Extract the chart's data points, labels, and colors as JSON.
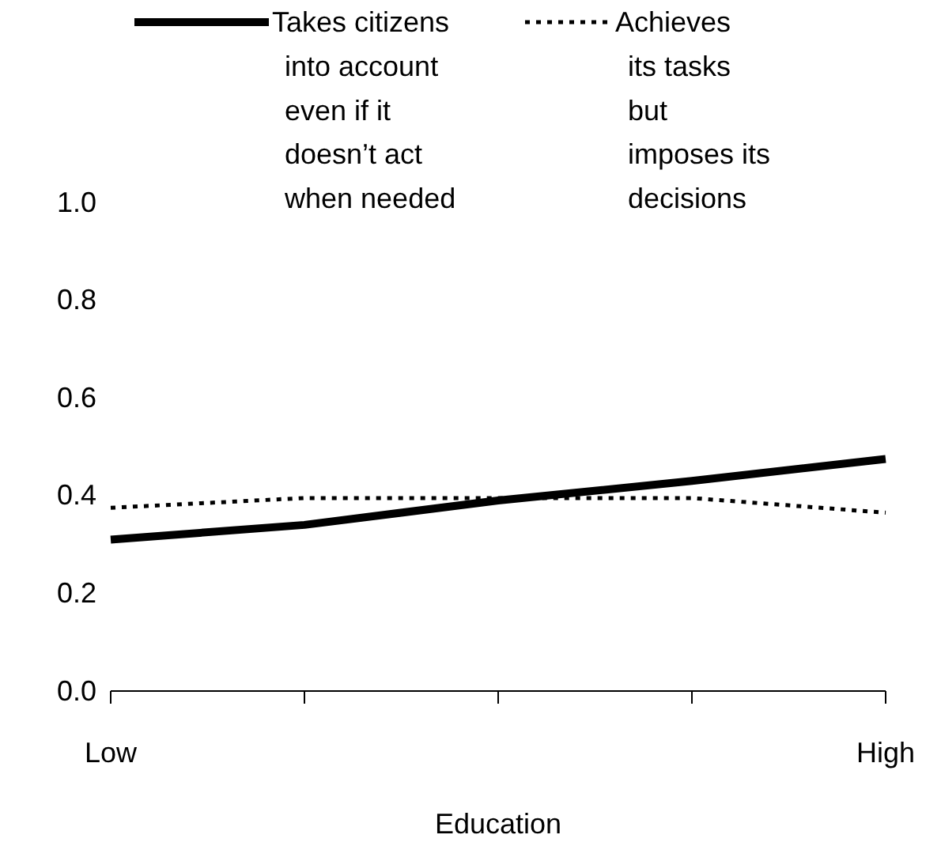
{
  "chart_data": {
    "type": "line",
    "xlabel": "Education",
    "categories": [
      "Low",
      null,
      null,
      null,
      "High"
    ],
    "ylim": [
      0,
      1
    ],
    "yticks": [
      {
        "value": 0,
        "label": "0.0"
      },
      0.2,
      0.4,
      0.6,
      0.8,
      {
        "value": 1,
        "label": "1.0"
      }
    ],
    "legend": "top",
    "grid": false,
    "marker": "none",
    "series": [
      {
        "name": "Takes citizens into account even if it doesn’t act when needed",
        "color": "#000000",
        "line_style": "solid",
        "values": [
          0.31,
          0.34,
          0.39,
          0.43,
          0.475
        ]
      },
      {
        "name": "Achieves its tasks but imposes its decisions",
        "color": "#000000",
        "line_style": "dotted",
        "values": [
          0.375,
          0.395,
          0.395,
          0.395,
          0.365
        ]
      }
    ]
  }
}
